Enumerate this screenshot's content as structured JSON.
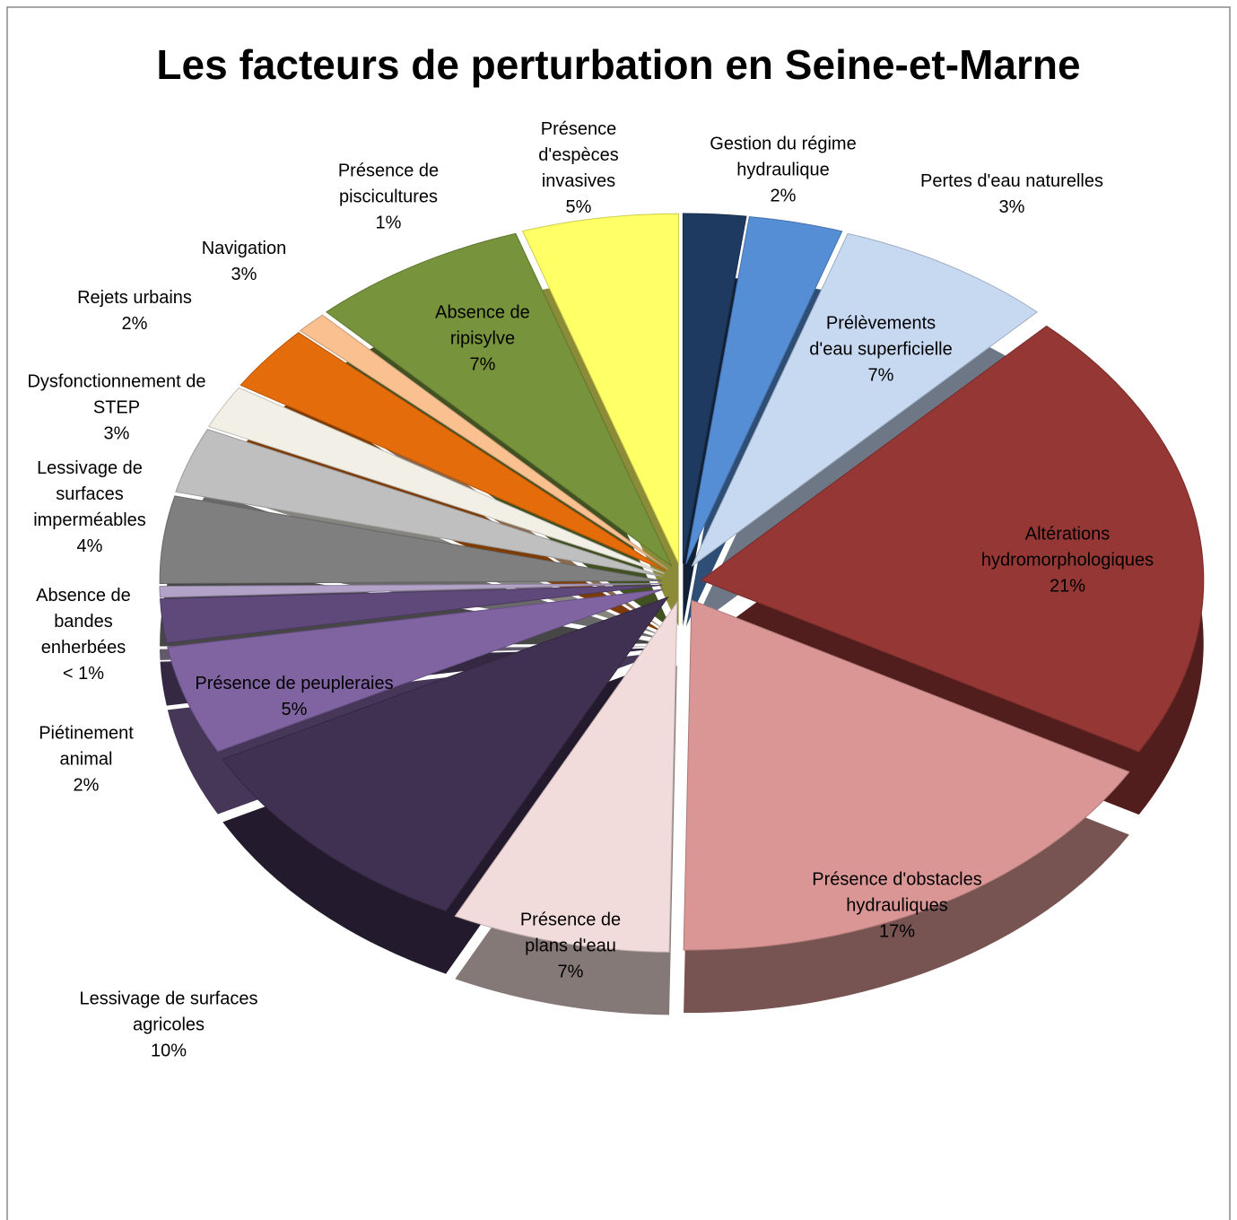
{
  "chart_data": {
    "type": "pie",
    "title": "Les facteurs de perturbation en Seine-et-Marne",
    "categories": [
      "Gestion du régime hydraulique",
      "Pertes d'eau naturelles",
      "Prélèvements d'eau superficielle",
      "Altérations hydromorphologiques",
      "Présence d'obstacles hydrauliques",
      "Présence de plans d'eau",
      "Lessivage de surfaces agricoles",
      "Présence de peupleraies",
      "Piétinement animal",
      "Absence de bandes enherbées",
      "Lessivage de surfaces imperméables",
      "Dysfonctionnement de STEP",
      "Rejets urbains",
      "Navigation",
      "Présence de piscicultures",
      "Absence de ripisylve",
      "Présence d'espèces invasives"
    ],
    "values": [
      2,
      3,
      7,
      21,
      17,
      7,
      10,
      5,
      2,
      0.5,
      4,
      3,
      2,
      3,
      1,
      7,
      5
    ],
    "value_labels": [
      "2%",
      "3%",
      "7%",
      "21%",
      "17%",
      "7%",
      "10%",
      "5%",
      "2%",
      "< 1%",
      "4%",
      "3%",
      "2%",
      "3%",
      "1%",
      "7%",
      "5%"
    ],
    "colors": [
      "#1f3a60",
      "#558ed5",
      "#c6d9f1",
      "#953735",
      "#d99694",
      "#f2dcdb",
      "#403152",
      "#8064a2",
      "#5f497a",
      "#b3a2c7",
      "#7f7f7f",
      "#bfbfbf",
      "#f2f0e6",
      "#e46c0a",
      "#fac090",
      "#77933c",
      "#ffff66"
    ]
  }
}
